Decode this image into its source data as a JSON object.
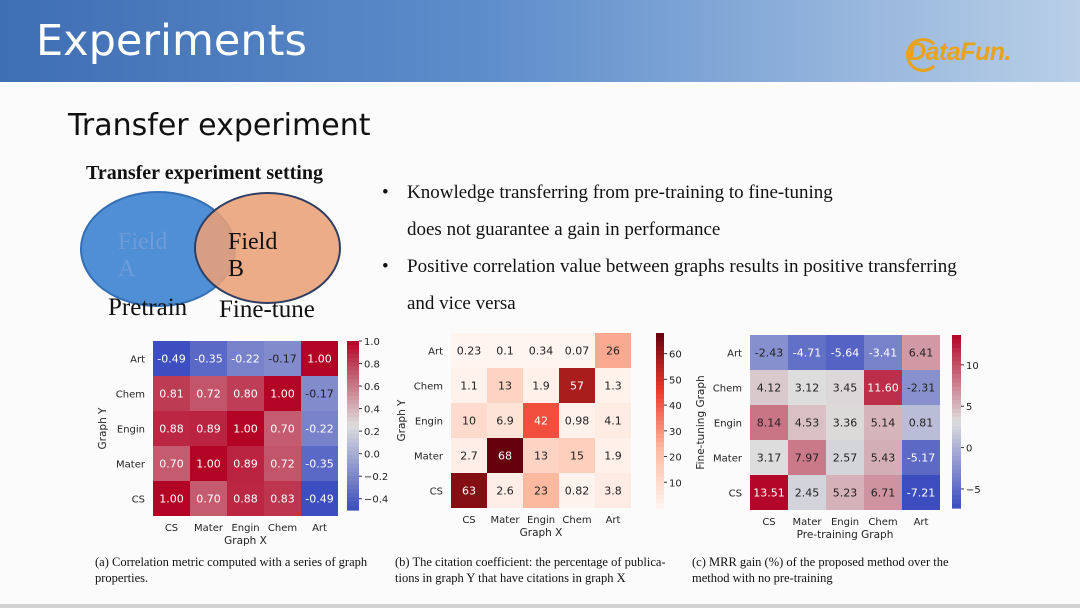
{
  "header": {
    "title": "Experiments",
    "logo": "DataFun."
  },
  "section_title": "Transfer experiment",
  "setting_title": "Transfer experiment setting",
  "venn": {
    "field_a": "Field A",
    "field_b": "Field B",
    "caption_a": "Pretrain",
    "caption_b": "Fine-tune"
  },
  "bullets": [
    {
      "lines": [
        "Knowledge transferring from pre-training to fine-tuning",
        "does not guarantee a gain in performance"
      ]
    },
    {
      "lines": [
        "Positive correlation value between graphs results in positive transferring",
        "and vice versa"
      ]
    }
  ],
  "colors": {
    "accent_blue": "#3f6fb3",
    "logo_orange": "#e8a21b"
  },
  "chart_data": [
    {
      "type": "heatmap",
      "title": "",
      "xlabel": "Graph X",
      "ylabel": "Graph Y",
      "x_categories": [
        "CS",
        "Mater",
        "Engin",
        "Chem",
        "Art"
      ],
      "y_categories": [
        "Art",
        "Chem",
        "Engin",
        "Mater",
        "CS"
      ],
      "values": [
        [
          -0.49,
          -0.35,
          -0.22,
          -0.17,
          1.0
        ],
        [
          0.81,
          0.72,
          0.8,
          1.0,
          -0.17
        ],
        [
          0.88,
          0.89,
          1.0,
          0.7,
          -0.22
        ],
        [
          0.7,
          1.0,
          0.89,
          0.72,
          -0.35
        ],
        [
          1.0,
          0.7,
          0.88,
          0.83,
          -0.49
        ]
      ],
      "labels": [
        [
          "-0.49",
          "-0.35",
          "-0.22",
          "-0.17",
          "1.00"
        ],
        [
          "0.81",
          "0.72",
          "0.80",
          "1.00",
          "-0.17"
        ],
        [
          "0.88",
          "0.89",
          "1.00",
          "0.70",
          "-0.22"
        ],
        [
          "0.70",
          "1.00",
          "0.89",
          "0.72",
          "-0.35"
        ],
        [
          "1.00",
          "0.70",
          "0.88",
          "0.83",
          "-0.49"
        ]
      ],
      "colormap": "coolwarm",
      "vmin": -0.5,
      "vmax": 1.0,
      "colorbar_ticks": [
        1.0,
        0.8,
        0.6,
        0.4,
        0.2,
        0.0,
        -0.2,
        -0.4
      ],
      "colorbar_tick_labels": [
        "1.0",
        "0.8",
        "0.6",
        "0.4",
        "0.2",
        "0.0",
        "−0.2",
        "−0.4"
      ],
      "caption": [
        "(a)  Correlation metric computed with a series of graph",
        "properties."
      ]
    },
    {
      "type": "heatmap",
      "title": "",
      "xlabel": "Graph X",
      "ylabel": "Graph Y",
      "x_categories": [
        "CS",
        "Mater",
        "Engin",
        "Chem",
        "Art"
      ],
      "y_categories": [
        "Art",
        "Chem",
        "Engin",
        "Mater",
        "CS"
      ],
      "values": [
        [
          0.23,
          0.1,
          0.34,
          0.07,
          26
        ],
        [
          1.1,
          13,
          1.9,
          57,
          1.3
        ],
        [
          10,
          6.9,
          42,
          0.98,
          4.1
        ],
        [
          2.7,
          68,
          13,
          15,
          1.9
        ],
        [
          63,
          2.6,
          23,
          0.82,
          3.8
        ]
      ],
      "labels": [
        [
          "0.23",
          "0.1",
          "0.34",
          "0.07",
          "26"
        ],
        [
          "1.1",
          "13",
          "1.9",
          "57",
          "1.3"
        ],
        [
          "10",
          "6.9",
          "42",
          "0.98",
          "4.1"
        ],
        [
          "2.7",
          "68",
          "13",
          "15",
          "1.9"
        ],
        [
          "63",
          "2.6",
          "23",
          "0.82",
          "3.8"
        ]
      ],
      "colormap": "reds",
      "vmin": 0,
      "vmax": 68,
      "colorbar_ticks": [
        60,
        50,
        40,
        30,
        20,
        10
      ],
      "colorbar_tick_labels": [
        "60",
        "50",
        "40",
        "30",
        "20",
        "10"
      ],
      "caption": [
        "(b)  The citation coefficient: the percentage of publica-",
        "tions in graph Y that have citations in graph X"
      ]
    },
    {
      "type": "heatmap",
      "title": "",
      "xlabel": "Pre-training Graph",
      "ylabel": "Fine-tuning Graph",
      "x_categories": [
        "CS",
        "Mater",
        "Engin",
        "Chem",
        "Art"
      ],
      "y_categories": [
        "Art",
        "Chem",
        "Engin",
        "Mater",
        "CS"
      ],
      "values": [
        [
          -2.43,
          -4.71,
          -5.64,
          -3.41,
          6.41
        ],
        [
          4.12,
          3.12,
          3.45,
          11.6,
          -2.31
        ],
        [
          8.14,
          4.53,
          3.36,
          5.14,
          0.81
        ],
        [
          3.17,
          7.97,
          2.57,
          5.43,
          -5.17
        ],
        [
          13.51,
          2.45,
          5.23,
          6.71,
          -7.21
        ]
      ],
      "labels": [
        [
          "-2.43",
          "-4.71",
          "-5.64",
          "-3.41",
          "6.41"
        ],
        [
          "4.12",
          "3.12",
          "3.45",
          "11.60",
          "-2.31"
        ],
        [
          "8.14",
          "4.53",
          "3.36",
          "5.14",
          "0.81"
        ],
        [
          "3.17",
          "7.97",
          "2.57",
          "5.43",
          "-5.17"
        ],
        [
          "13.51",
          "2.45",
          "5.23",
          "6.71",
          "-7.21"
        ]
      ],
      "colormap": "coolwarm",
      "vmin": -7.3,
      "vmax": 13.6,
      "colorbar_ticks": [
        10,
        5,
        0,
        -5
      ],
      "colorbar_tick_labels": [
        "10",
        "5",
        "0",
        "−5"
      ],
      "caption": [
        "(c)  MRR gain (%) of the proposed method over the",
        "method with no pre-training"
      ]
    }
  ]
}
